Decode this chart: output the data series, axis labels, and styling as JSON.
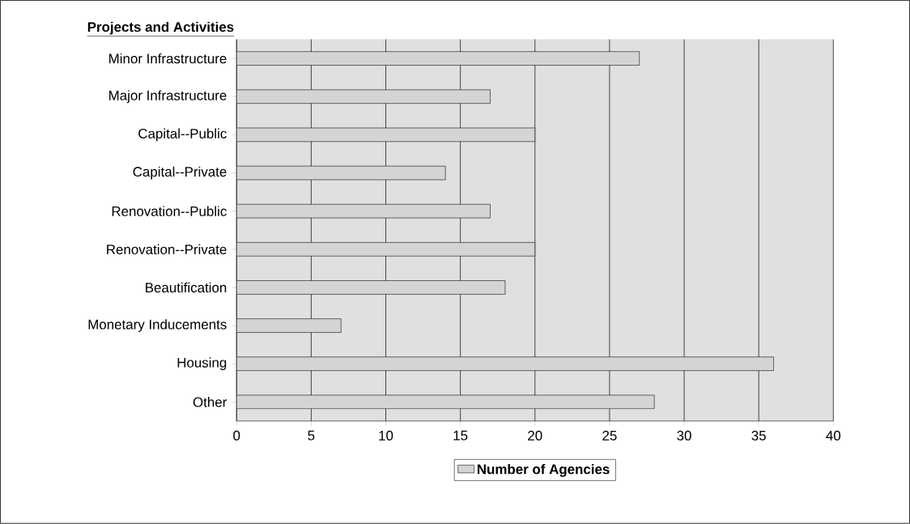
{
  "chart_data": {
    "type": "bar",
    "orientation": "horizontal",
    "ylabel": "Projects and Activities",
    "categories": [
      "Minor Infrastructure",
      "Major Infrastructure",
      "Capital--Public",
      "Capital--Private",
      "Renovation--Public",
      "Renovation--Private",
      "Beautification",
      "Monetary Inducements",
      "Housing",
      "Other"
    ],
    "series": [
      {
        "name": "Number of Agencies",
        "color": "#d4d4d4",
        "values": [
          27,
          17,
          20,
          14,
          17,
          20,
          18,
          7,
          36,
          28
        ]
      }
    ],
    "xlim": [
      0,
      40
    ],
    "xticks": [
      0,
      5,
      10,
      15,
      20,
      25,
      30,
      35,
      40
    ],
    "grid": "x",
    "legend": "bottom"
  }
}
